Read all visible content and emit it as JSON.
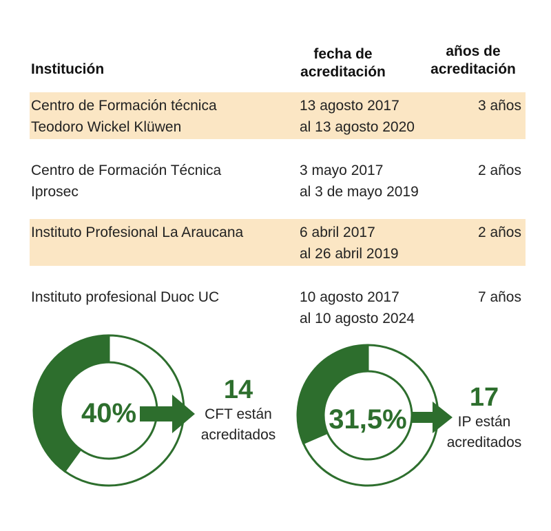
{
  "table": {
    "headers": {
      "institucion": "Institución",
      "fecha_line1": "fecha de",
      "fecha_line2": "acreditación",
      "anos_line1": "años de",
      "anos_line2": "acreditación"
    },
    "rows": [
      {
        "inst1": "Centro de Formación técnica",
        "inst2": "Teodoro Wickel Klüwen",
        "fecha1": "13 agosto 2017",
        "fecha2": "al 13 agosto 2020",
        "anos": "3 años"
      },
      {
        "inst1": "Centro de Formación Técnica",
        "inst2": "Iprosec",
        "fecha1": "3 mayo 2017",
        "fecha2": "al 3 de mayo 2019",
        "anos": "2 años"
      },
      {
        "inst1": "Instituto Profesional La Araucana",
        "inst2": "",
        "fecha1": "6 abril 2017",
        "fecha2": "al 26 abril 2019",
        "anos": "2 años"
      },
      {
        "inst1": "Instituto profesional Duoc UC",
        "inst2": "",
        "fecha1": "10 agosto 2017",
        "fecha2": "al 10 agosto 2024",
        "anos": "7 años"
      }
    ]
  },
  "colors": {
    "accent": "#2d6e2d",
    "shade": "#fbe6c4"
  },
  "chart_data": [
    {
      "type": "pie",
      "values": [
        40,
        60
      ],
      "center_label": "40%",
      "count": "14",
      "caption1": "CFT están",
      "caption2": "acreditados"
    },
    {
      "type": "pie",
      "values": [
        31.5,
        68.5
      ],
      "center_label": "31,5%",
      "count": "17",
      "caption1": "IP están",
      "caption2": "acreditados"
    }
  ]
}
